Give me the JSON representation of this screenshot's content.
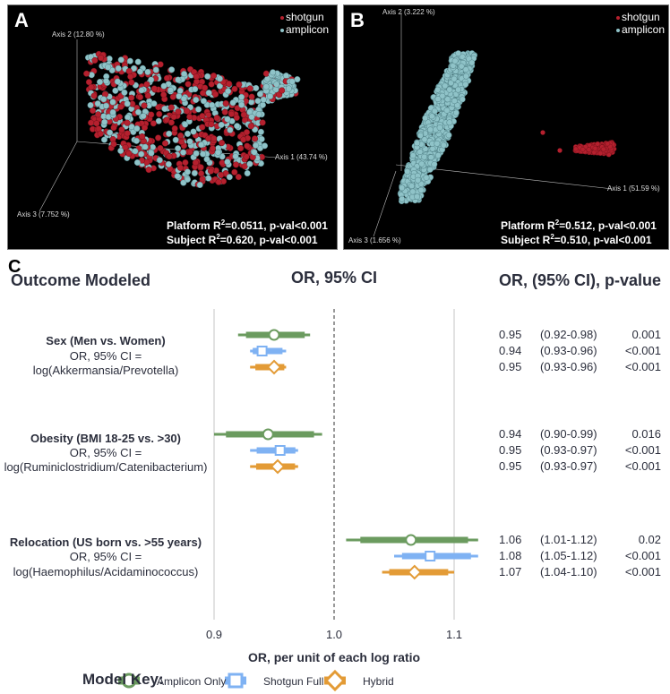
{
  "panels": [
    {
      "label": "A",
      "legend": [
        {
          "name": "shotgun",
          "color": "#b5202e"
        },
        {
          "name": "amplicon",
          "color": "#8fc3c8"
        }
      ],
      "axes": {
        "axis1": "Axis 1 (43.74 %)",
        "axis2": "Axis 2 (12.80 %)",
        "axis3": "Axis 3 (7.752 %)"
      },
      "stats": [
        {
          "prefix": "Platform R",
          "sup": "2",
          "suffix": "=0.0511, p-val<0.001"
        },
        {
          "prefix": "Subject R",
          "sup": "2",
          "suffix": "=0.620, p-val<0.001"
        }
      ]
    },
    {
      "label": "B",
      "legend": [
        {
          "name": "shotgun",
          "color": "#b5202e"
        },
        {
          "name": "amplicon",
          "color": "#8fc3c8"
        }
      ],
      "axes": {
        "axis1": "Axis 1 (51.59 %)",
        "axis2": "Axis 2 (3.222 %)",
        "axis3": "Axis 3 (1.656 %)"
      },
      "stats": [
        {
          "prefix": "Platform R",
          "sup": "2",
          "suffix": "=0.512, p-val<0.001"
        },
        {
          "prefix": "Subject R",
          "sup": "2",
          "suffix": "=0.510, p-val<0.001"
        }
      ]
    }
  ],
  "chart_data": {
    "type": "forest",
    "panel_label": "C",
    "headers": {
      "outcome": "Outcome Modeled",
      "plot": "OR, 95% CI",
      "table": "OR, (95% CI), p-value"
    },
    "xlabel": "OR, per unit of each log ratio",
    "xticks": [
      "0.9",
      "1.0",
      "1.1"
    ],
    "xtick_values": [
      0.9,
      1.0,
      1.1
    ],
    "reference_line": 1.0,
    "model_key": {
      "title": "Model Key:",
      "models": [
        {
          "name": "Amplicon Only",
          "marker": "circle",
          "color": "#6b9b5f"
        },
        {
          "name": "Shotgun Full",
          "marker": "square",
          "color": "#7fb2f3"
        },
        {
          "name": "Hybrid",
          "marker": "diamond",
          "color": "#e39b36"
        }
      ]
    },
    "rows": [
      {
        "outcome": "Sex (Men vs. Women)",
        "line2": "OR, 95% CI =",
        "line3": "log(Akkermansia/Prevotella)",
        "results": [
          {
            "or": 0.95,
            "lo": 0.92,
            "hi": 0.98,
            "or_text": "0.95",
            "ci_text": "(0.92-0.98)",
            "p_text": "0.001"
          },
          {
            "or": 0.94,
            "lo": 0.93,
            "hi": 0.96,
            "or_text": "0.94",
            "ci_text": "(0.93-0.96)",
            "p_text": "<0.001"
          },
          {
            "or": 0.95,
            "lo": 0.93,
            "hi": 0.96,
            "or_text": "0.95",
            "ci_text": "(0.93-0.96)",
            "p_text": "<0.001"
          }
        ]
      },
      {
        "outcome": "Obesity (BMI 18-25 vs. >30)",
        "line2": "OR, 95% CI =",
        "line3": "log(Ruminiclostridium/Catenibacterium)",
        "results": [
          {
            "or": 0.945,
            "lo": 0.9,
            "hi": 0.99,
            "or_text": "0.94",
            "ci_text": "(0.90-0.99)",
            "p_text": "0.016"
          },
          {
            "or": 0.955,
            "lo": 0.93,
            "hi": 0.97,
            "or_text": "0.95",
            "ci_text": "(0.93-0.97)",
            "p_text": "<0.001"
          },
          {
            "or": 0.953,
            "lo": 0.93,
            "hi": 0.97,
            "or_text": "0.95",
            "ci_text": "(0.93-0.97)",
            "p_text": "<0.001"
          }
        ]
      },
      {
        "outcome": "Relocation (US born vs. >55 years)",
        "line2": "OR, 95% CI =",
        "line3": "log(Haemophilus/Acidaminococcus)",
        "results": [
          {
            "or": 1.064,
            "lo": 1.01,
            "hi": 1.12,
            "or_text": "1.06",
            "ci_text": "(1.01-1.12)",
            "p_text": "0.02"
          },
          {
            "or": 1.08,
            "lo": 1.05,
            "hi": 1.12,
            "or_text": "1.08",
            "ci_text": "(1.05-1.12)",
            "p_text": "<0.001"
          },
          {
            "or": 1.067,
            "lo": 1.04,
            "hi": 1.1,
            "or_text": "1.07",
            "ci_text": "(1.04-1.10)",
            "p_text": "<0.001"
          }
        ]
      }
    ]
  }
}
